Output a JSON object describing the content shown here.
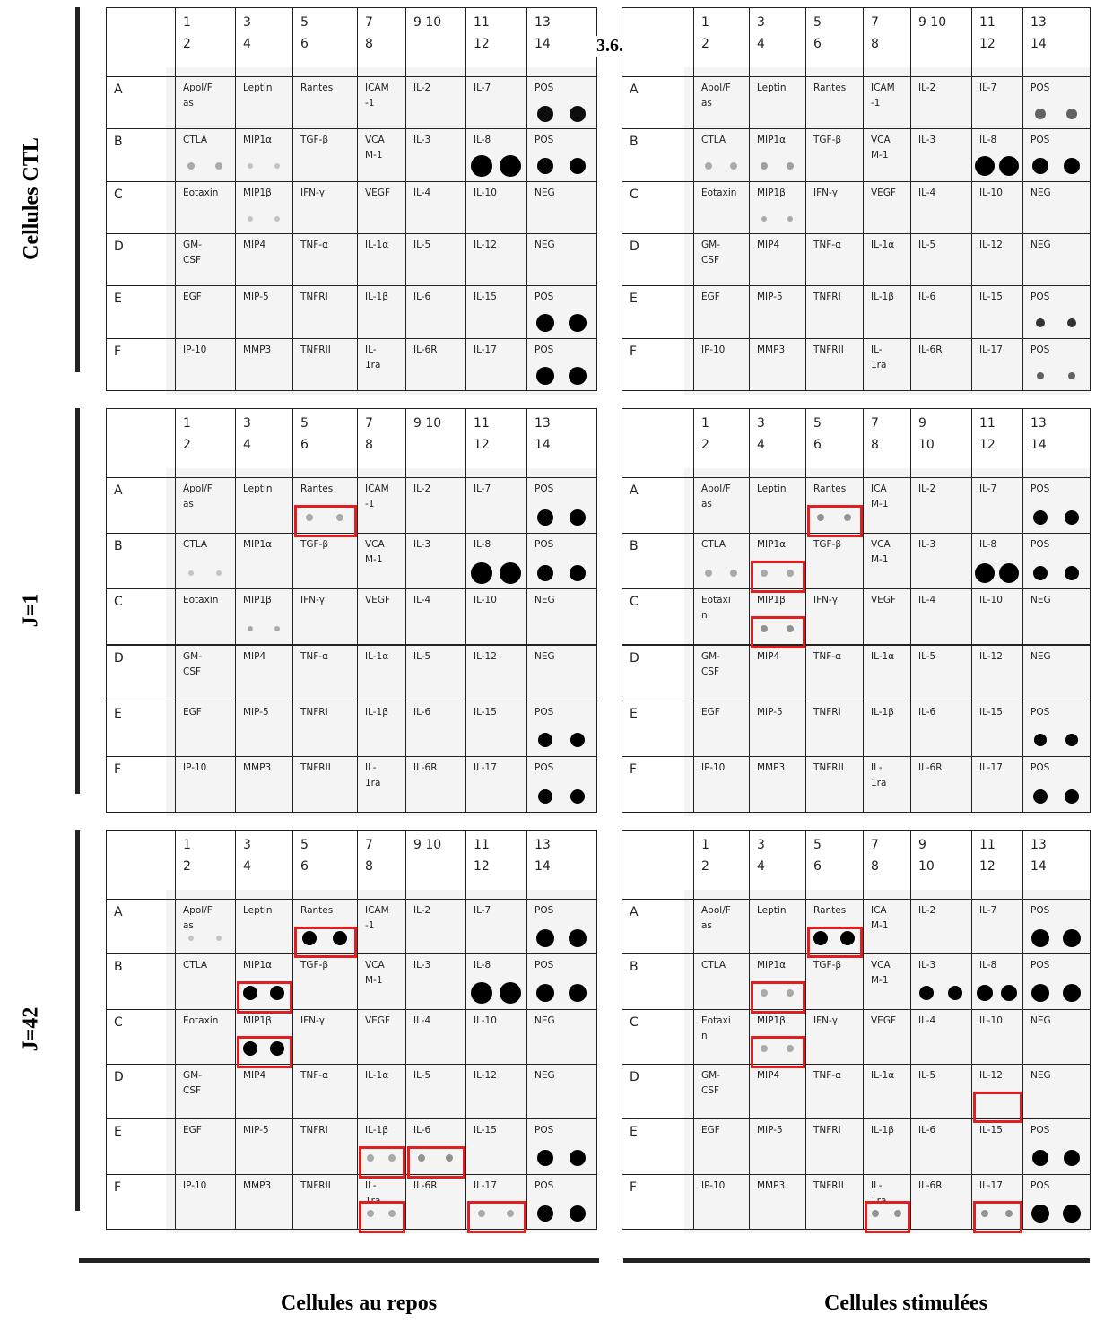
{
  "figure_label": "3.6.",
  "row_titles": [
    "Cellules CTL",
    "J=1",
    "J=42"
  ],
  "column_titles": [
    "Cellules au repos",
    "Cellules stimulées"
  ],
  "row_letters": [
    "A",
    "B",
    "C",
    "D",
    "E",
    "F"
  ],
  "grids": [
    {
      "headers": [
        "1\n2",
        "3\n4",
        "5\n6",
        "7\n8",
        "9 10",
        "11\n12",
        "13\n14"
      ],
      "rows": [
        [
          "Apol/F\nas",
          "Leptin",
          "Rantes",
          "ICAM\n-1",
          "IL-2",
          "IL-7",
          "POS"
        ],
        [
          "CTLA",
          "MIP1α",
          "TGF-β",
          "VCA\nM-1",
          "IL-3",
          "IL-8",
          "POS"
        ],
        [
          "Eotaxin",
          "MIP1β",
          "IFN-γ",
          "VEGF",
          "IL-4",
          "IL-10",
          "NEG"
        ],
        [
          "GM-\nCSF",
          "MIP4",
          "TNF-α",
          "IL-1α",
          "IL-5",
          "IL-12",
          "NEG"
        ],
        [
          "EGF",
          "MIP-5",
          "TNFRI",
          "IL-1β",
          "IL-6",
          "IL-15",
          "POS"
        ],
        [
          "IP-10",
          "MMP3",
          "TNFRII",
          "IL-\n1ra",
          "IL-6R",
          "IL-17",
          "POS"
        ]
      ]
    },
    {
      "headers": [
        "1\n2",
        "3\n4",
        "5\n6",
        "7\n8",
        "9\n10",
        "11\n12",
        "13\n14"
      ],
      "rows": [
        [
          "Apol/F\nas",
          "Leptin",
          "Rantes",
          "ICA\nM-1",
          "IL-2",
          "IL-7",
          "POS"
        ],
        [
          "CTLA",
          "MIP1α",
          "TGF-β",
          "VCA\nM-1",
          "IL-3",
          "IL-8",
          "POS"
        ],
        [
          "Eotaxi\nn",
          "MIP1β",
          "IFN-γ",
          "VEGF",
          "IL-4",
          "IL-10",
          "NEG"
        ],
        [
          "GM-\nCSF",
          "MIP4",
          "TNF-α",
          "IL-1α",
          "IL-5",
          "IL-12",
          "NEG"
        ],
        [
          "EGF",
          "MIP-5",
          "TNFRI",
          "IL-1β",
          "IL-6",
          "IL-15",
          "POS"
        ],
        [
          "IP-10",
          "MMP3",
          "TNFRII",
          "IL-\n1ra",
          "IL-6R",
          "IL-17",
          "POS"
        ]
      ]
    }
  ]
}
